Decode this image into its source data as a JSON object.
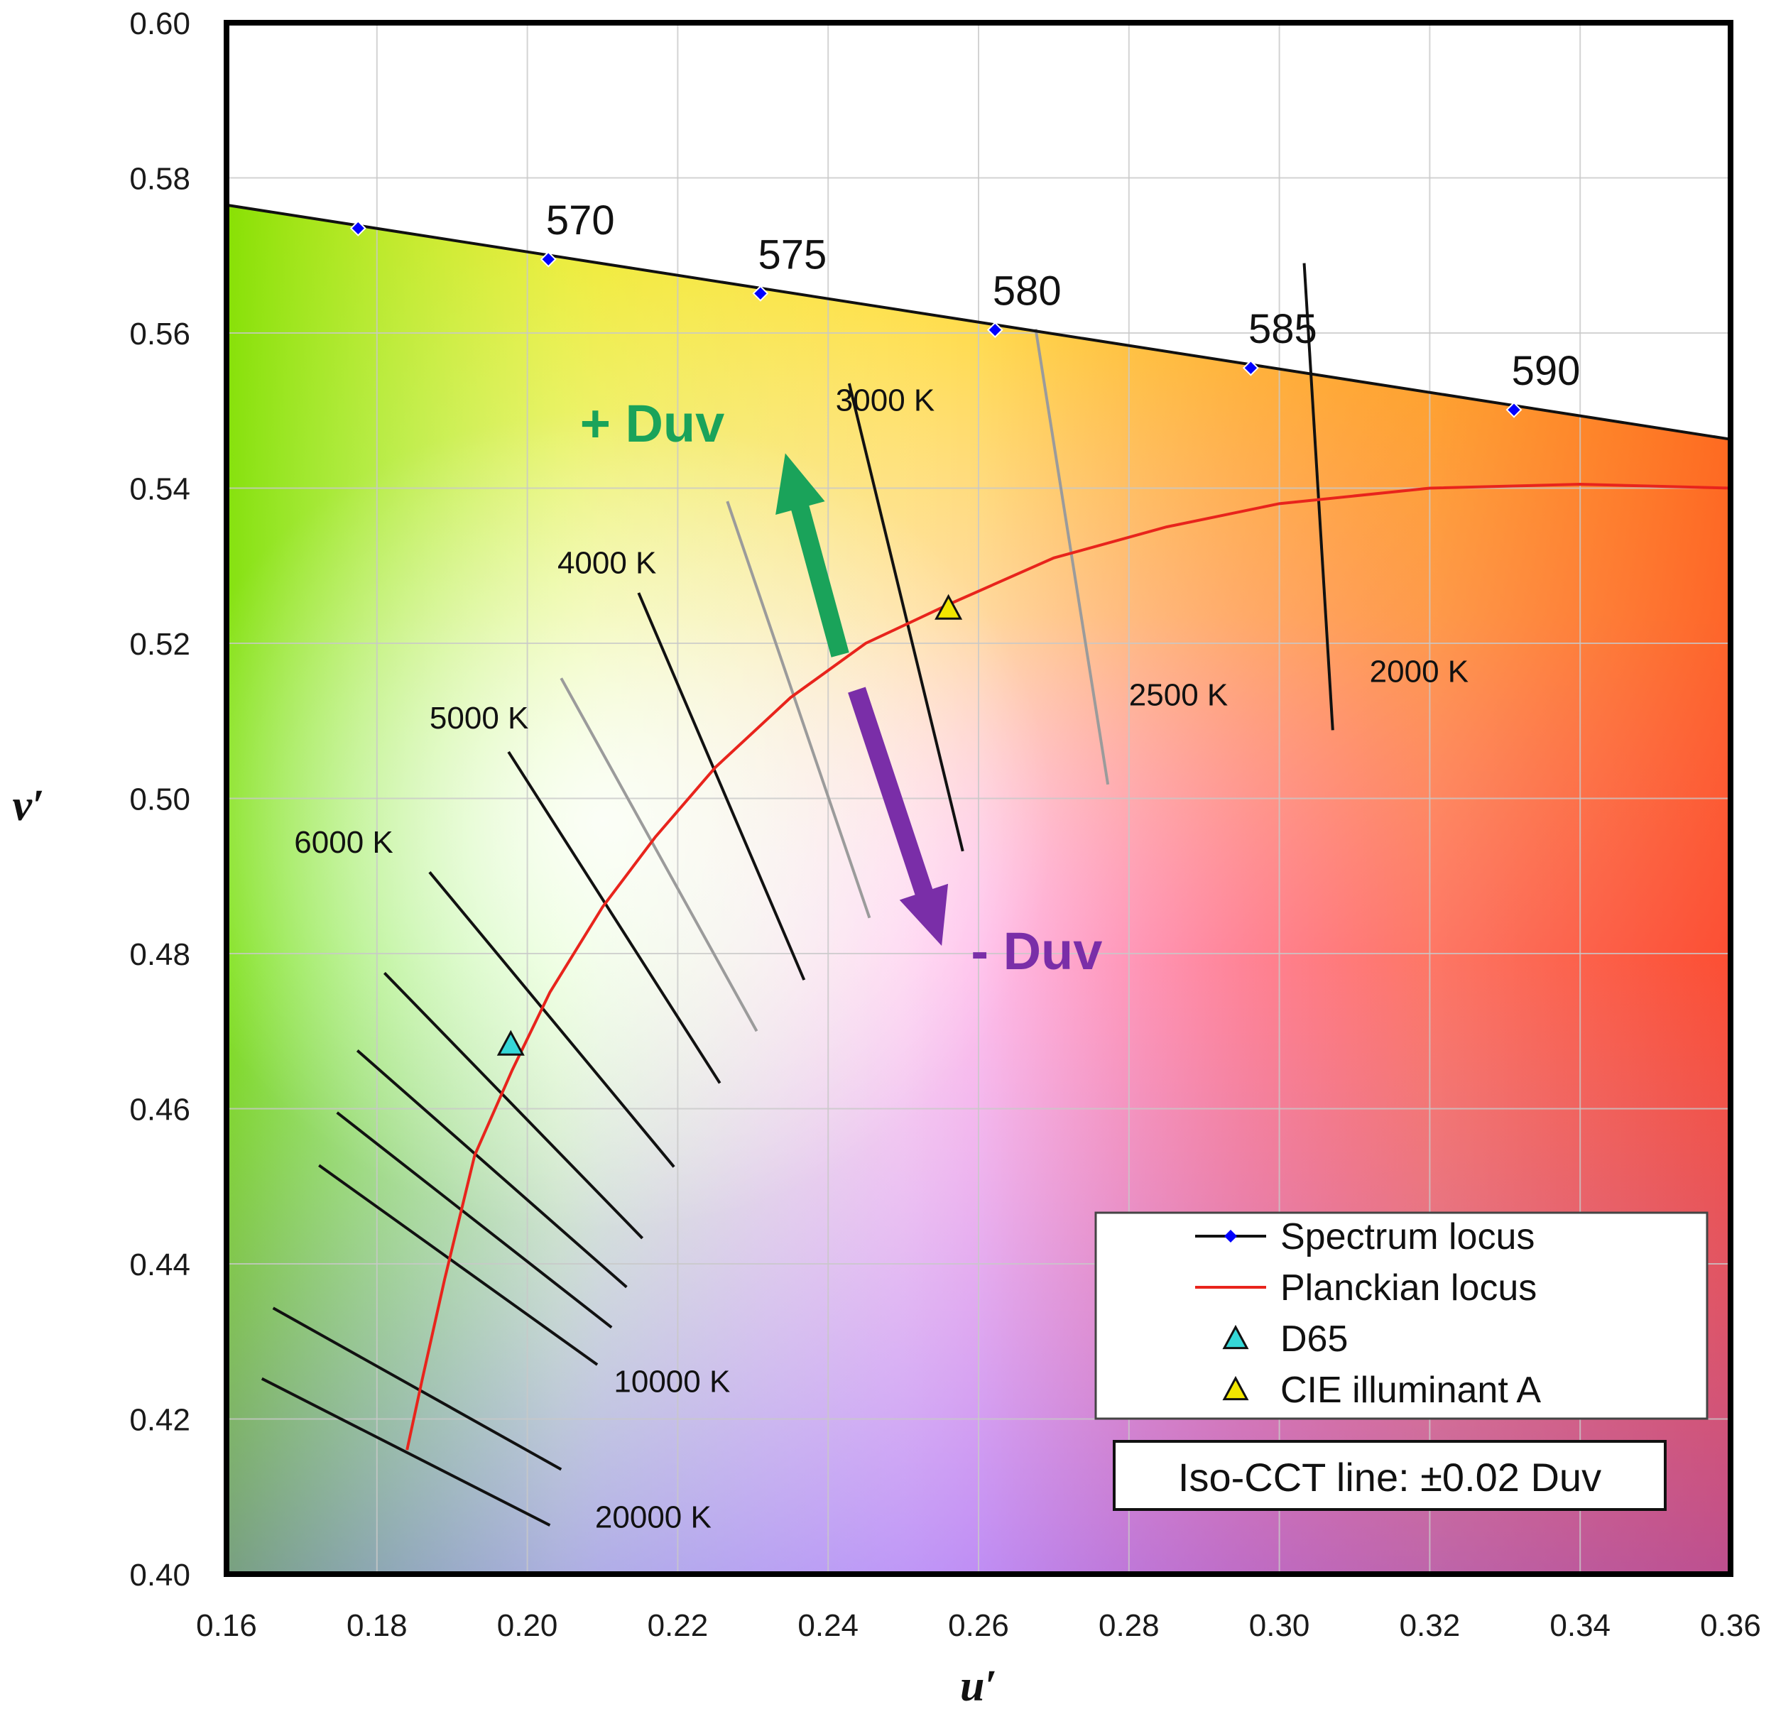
{
  "chart_data": {
    "type": "scatter",
    "title": "",
    "xlabel": "u′",
    "ylabel": "v′",
    "xlim": [
      0.16,
      0.36
    ],
    "ylim": [
      0.4,
      0.6
    ],
    "grid": true,
    "x_ticks": [
      "0.16",
      "0.18",
      "0.20",
      "0.22",
      "0.24",
      "0.26",
      "0.28",
      "0.30",
      "0.32",
      "0.34",
      "0.36"
    ],
    "y_ticks": [
      "0.40",
      "0.42",
      "0.44",
      "0.46",
      "0.48",
      "0.50",
      "0.52",
      "0.54",
      "0.56",
      "0.58",
      "0.60"
    ],
    "spectrum_locus": {
      "name": "Spectrum locus",
      "color": "#0000ff",
      "line": [
        [
          0.16,
          0.5765
        ],
        [
          0.36,
          0.5463
        ]
      ],
      "points": [
        {
          "u": 0.1775,
          "v": 0.5735,
          "label": ""
        },
        {
          "u": 0.2028,
          "v": 0.5695,
          "label": "570"
        },
        {
          "u": 0.231,
          "v": 0.5651,
          "label": "575"
        },
        {
          "u": 0.2622,
          "v": 0.5604,
          "label": "580"
        },
        {
          "u": 0.2962,
          "v": 0.5555,
          "label": "585"
        },
        {
          "u": 0.3312,
          "v": 0.5501,
          "label": "590"
        }
      ]
    },
    "planckian_locus": {
      "name": "Planckian locus",
      "color": "#e8241c",
      "points": [
        [
          0.184,
          0.416
        ],
        [
          0.186,
          0.425
        ],
        [
          0.189,
          0.438
        ],
        [
          0.193,
          0.454
        ],
        [
          0.198,
          0.465
        ],
        [
          0.203,
          0.475
        ],
        [
          0.21,
          0.486
        ],
        [
          0.217,
          0.495
        ],
        [
          0.225,
          0.504
        ],
        [
          0.235,
          0.513
        ],
        [
          0.245,
          0.52
        ],
        [
          0.256,
          0.525
        ],
        [
          0.27,
          0.531
        ],
        [
          0.285,
          0.535
        ],
        [
          0.3,
          0.538
        ],
        [
          0.32,
          0.54
        ],
        [
          0.34,
          0.5405
        ],
        [
          0.36,
          0.54
        ]
      ]
    },
    "illuminants": [
      {
        "name": "D65",
        "u": 0.1978,
        "v": 0.4683,
        "color": "#35d8d8"
      },
      {
        "name": "CIE illuminant A",
        "u": 0.256,
        "v": 0.5245,
        "color": "#f2e600"
      }
    ],
    "iso_cct_lines": [
      {
        "label": "2000 K",
        "from": [
          0.3071,
          0.5088
        ],
        "to": [
          0.3033,
          0.569
        ],
        "color": "#111111",
        "label_at": [
          0.312,
          0.515
        ]
      },
      {
        "label": "2500 K",
        "from": [
          0.2772,
          0.5018
        ],
        "to": [
          0.2676,
          0.5605
        ],
        "color": "#9b9b9b",
        "label_at": [
          0.28,
          0.512
        ]
      },
      {
        "label": "3000 K",
        "from": [
          0.2579,
          0.4932
        ],
        "to": [
          0.2428,
          0.5535
        ],
        "color": "#111111",
        "label_at": [
          0.241,
          0.55
        ]
      },
      {
        "label": "",
        "from": [
          0.2455,
          0.4846
        ],
        "to": [
          0.2266,
          0.5383
        ],
        "color": "#9b9b9b"
      },
      {
        "label": "4000 K",
        "from": [
          0.2368,
          0.4766
        ],
        "to": [
          0.2148,
          0.5265
        ],
        "color": "#111111",
        "label_at": [
          0.204,
          0.529
        ]
      },
      {
        "label": "",
        "from": [
          0.2305,
          0.47
        ],
        "to": [
          0.2045,
          0.5155
        ],
        "color": "#9b9b9b"
      },
      {
        "label": "5000 K",
        "from": [
          0.2256,
          0.4633
        ],
        "to": [
          0.1975,
          0.506
        ],
        "color": "#111111",
        "label_at": [
          0.187,
          0.509
        ]
      },
      {
        "label": "6000 K",
        "from": [
          0.2195,
          0.4525
        ],
        "to": [
          0.187,
          0.4905
        ],
        "color": "#111111",
        "label_at": [
          0.169,
          0.493
        ]
      },
      {
        "label": "",
        "from": [
          0.2153,
          0.4433
        ],
        "to": [
          0.181,
          0.4775
        ],
        "color": "#111111"
      },
      {
        "label": "",
        "from": [
          0.2132,
          0.437
        ],
        "to": [
          0.1774,
          0.4675
        ],
        "color": "#111111"
      },
      {
        "label": "",
        "from": [
          0.2112,
          0.4318
        ],
        "to": [
          0.1747,
          0.4595
        ],
        "color": "#111111"
      },
      {
        "label": "10000 K",
        "from": [
          0.2093,
          0.427
        ],
        "to": [
          0.1723,
          0.4527
        ],
        "color": "#111111",
        "label_at": [
          0.2115,
          0.4235
        ]
      },
      {
        "label": "",
        "from": [
          0.2045,
          0.4135
        ],
        "to": [
          0.1662,
          0.4343
        ],
        "color": "#111111"
      },
      {
        "label": "20000 K",
        "from": [
          0.203,
          0.4063
        ],
        "to": [
          0.1647,
          0.4252
        ],
        "color": "#111111",
        "label_at": [
          0.209,
          0.406
        ]
      }
    ],
    "annotations": [
      {
        "text": "+ Duv",
        "color": "#1aa35a",
        "arrow_from": [
          0.2416,
          0.5185
        ],
        "arrow_to": [
          0.2343,
          0.5445
        ],
        "label_at": [
          0.207,
          0.546
        ]
      },
      {
        "text": "- Duv",
        "color": "#7a2ea8",
        "arrow_from": [
          0.2438,
          0.514
        ],
        "arrow_to": [
          0.2551,
          0.481
        ],
        "label_at": [
          0.259,
          0.478
        ]
      }
    ],
    "legend": {
      "position": "bottom-right",
      "entries": [
        {
          "name": "Spectrum locus",
          "marker": "line-dot"
        },
        {
          "name": "Planckian locus",
          "marker": "line"
        },
        {
          "name": "D65",
          "marker": "triangle"
        },
        {
          "name": "CIE illuminant A",
          "marker": "triangle"
        }
      ]
    },
    "note": "Iso-CCT line: ±0.02 Duv"
  }
}
